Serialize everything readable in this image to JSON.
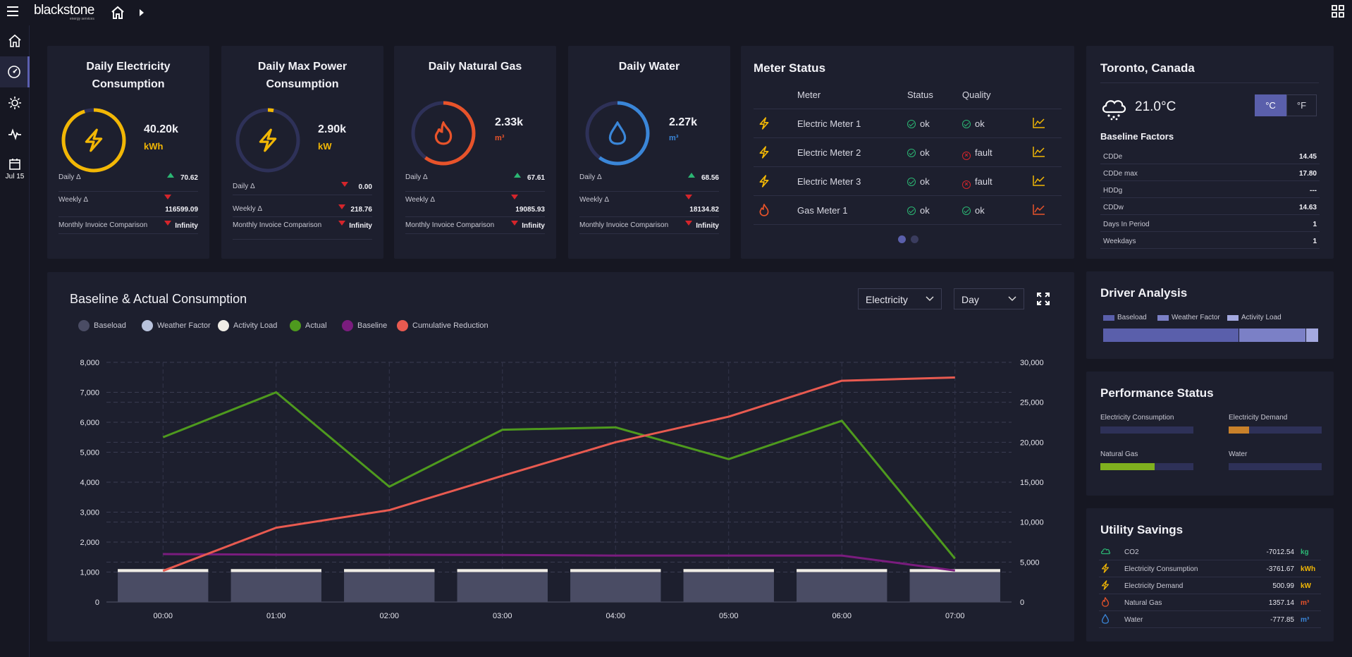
{
  "app": {
    "brand": "blackstone",
    "brand_sub": "energy services",
    "date_label": "Jul 15"
  },
  "kpi_cards": [
    {
      "title": "Daily Electricity Consumption",
      "value": "40.20k",
      "unit": "kWh",
      "color": "#f2b705",
      "ring_fraction": 0.95,
      "stats": [
        {
          "label": "Daily Δ",
          "dir": "up",
          "value": "70.62"
        },
        {
          "label": "Weekly Δ",
          "dir": "down",
          "value": "116599.09"
        },
        {
          "label": "Monthly Invoice Comparison",
          "dir": "down",
          "value": "Infinity"
        }
      ]
    },
    {
      "title": "Daily Max Power Consumption",
      "value": "2.90k",
      "unit": "kW",
      "color": "#f2b705",
      "ring_fraction": 0.03,
      "stats": [
        {
          "label": "Daily Δ",
          "dir": "down",
          "value": "0.00"
        },
        {
          "label": "Weekly Δ",
          "dir": "down",
          "value": "218.76"
        },
        {
          "label": "Monthly Invoice Comparison",
          "dir": "down",
          "value": "Infinity"
        }
      ]
    },
    {
      "title": "Daily Natural Gas",
      "value": "2.33k",
      "unit": "m³",
      "color": "#e8532a",
      "ring_fraction": 0.6,
      "stats": [
        {
          "label": "Daily Δ",
          "dir": "up",
          "value": "67.61"
        },
        {
          "label": "Weekly Δ",
          "dir": "down",
          "value": "19085.93"
        },
        {
          "label": "Monthly Invoice Comparison",
          "dir": "down",
          "value": "Infinity"
        }
      ]
    },
    {
      "title": "Daily Water",
      "value": "2.27k",
      "unit": "m³",
      "color": "#3a86d8",
      "ring_fraction": 0.6,
      "stats": [
        {
          "label": "Daily Δ",
          "dir": "up",
          "value": "68.56"
        },
        {
          "label": "Weekly Δ",
          "dir": "down",
          "value": "18134.82"
        },
        {
          "label": "Monthly Invoice Comparison",
          "dir": "down",
          "value": "Infinity"
        }
      ]
    }
  ],
  "meter_status": {
    "title": "Meter Status",
    "headers": {
      "meter": "Meter",
      "status": "Status",
      "quality": "Quality"
    },
    "rows": [
      {
        "icon": "lightning-icon",
        "meter": "Electric Meter 1",
        "status": "ok",
        "quality": "ok"
      },
      {
        "icon": "lightning-icon",
        "meter": "Electric Meter 2",
        "status": "ok",
        "quality": "fault"
      },
      {
        "icon": "lightning-icon",
        "meter": "Electric Meter 3",
        "status": "ok",
        "quality": "fault"
      },
      {
        "icon": "flame-icon",
        "meter": "Gas Meter 1",
        "status": "ok",
        "quality": "ok"
      }
    ]
  },
  "weather": {
    "location": "Toronto, Canada",
    "temp": "21.0°C",
    "unit_c": "°C",
    "unit_f": "°F",
    "baseline_title": "Baseline Factors",
    "factors": [
      {
        "label": "CDDe",
        "value": "14.45"
      },
      {
        "label": "CDDe max",
        "value": "17.80"
      },
      {
        "label": "HDDg",
        "value": "---"
      },
      {
        "label": "CDDw",
        "value": "14.63"
      },
      {
        "label": "Days In Period",
        "value": "1"
      },
      {
        "label": "Weekdays",
        "value": "1"
      }
    ]
  },
  "chart": {
    "title": "Baseline & Actual Consumption",
    "select_type": "Electricity",
    "select_period": "Day",
    "legend": [
      {
        "name": "Baseload",
        "color": "#4a4c64"
      },
      {
        "name": "Weather Factor",
        "color": "#b8c2dc"
      },
      {
        "name": "Activity Load",
        "color": "#f0ede6"
      },
      {
        "name": "Actual",
        "color": "#4e9a1e"
      },
      {
        "name": "Baseline",
        "color": "#7a1c7e"
      },
      {
        "name": "Cumulative Reduction",
        "color": "#e85a50"
      }
    ]
  },
  "chart_data": {
    "type": "bar",
    "categories": [
      "00:00",
      "01:00",
      "02:00",
      "03:00",
      "04:00",
      "05:00",
      "06:00",
      "07:00"
    ],
    "y_left": {
      "ticks": [
        "0",
        "1,000",
        "2,000",
        "3,000",
        "4,000",
        "5,000",
        "6,000",
        "7,000",
        "8,000"
      ],
      "min": 0,
      "max": 8000
    },
    "y_right": {
      "ticks": [
        "0",
        "5,000",
        "10,000",
        "15,000",
        "20,000",
        "25,000",
        "30,000"
      ],
      "min": 0,
      "max": 30000
    },
    "series": [
      {
        "name": "Baseload",
        "kind": "bar",
        "axis": "left",
        "values": [
          1000,
          1000,
          1000,
          1000,
          1000,
          1000,
          1000,
          1000
        ]
      },
      {
        "name": "Weather Factor",
        "kind": "bar",
        "axis": "left",
        "values": [
          0,
          0,
          0,
          0,
          0,
          0,
          0,
          0
        ]
      },
      {
        "name": "Activity Load",
        "kind": "bar",
        "axis": "left",
        "values": [
          100,
          100,
          100,
          100,
          100,
          100,
          100,
          100
        ]
      },
      {
        "name": "Actual",
        "kind": "line",
        "axis": "left",
        "values": [
          5500,
          7000,
          3850,
          5750,
          5830,
          4770,
          6050,
          1450
        ]
      },
      {
        "name": "Baseline",
        "kind": "line",
        "axis": "left",
        "values": [
          1600,
          1580,
          1580,
          1570,
          1550,
          1550,
          1550,
          1050
        ]
      },
      {
        "name": "Cumulative Reduction",
        "kind": "line",
        "axis": "right",
        "values": [
          3900,
          9300,
          11500,
          15800,
          20000,
          23200,
          27700,
          28100
        ]
      }
    ]
  },
  "driver_analysis": {
    "title": "Driver Analysis",
    "legend": [
      {
        "name": "Baseload",
        "color": "#5a5fab"
      },
      {
        "name": "Weather Factor",
        "color": "#7b80c6"
      },
      {
        "name": "Activity Load",
        "color": "#a4a9e0"
      }
    ],
    "shares": [
      0.63,
      0.31,
      0.06
    ]
  },
  "performance": {
    "title": "Performance Status",
    "items": [
      {
        "label": "Electricity Consumption",
        "fraction": 0,
        "color": "#5a5fab"
      },
      {
        "label": "Electricity Demand",
        "fraction": 0.22,
        "color": "#c9812a"
      },
      {
        "label": "Natural Gas",
        "fraction": 0.58,
        "color": "#7fb01e"
      },
      {
        "label": "Water",
        "fraction": 0,
        "color": "#5a5fab"
      }
    ]
  },
  "utility_savings": {
    "title": "Utility Savings",
    "rows": [
      {
        "icon": "cloud-icon",
        "label": "CO2",
        "value": "-7012.54",
        "unit": "kg",
        "color": "#2bb673"
      },
      {
        "icon": "lightning-icon",
        "label": "Electricity Consumption",
        "value": "-3761.67",
        "unit": "kWh",
        "color": "#f2b705"
      },
      {
        "icon": "lightning-icon",
        "label": "Electricity Demand",
        "value": "500.99",
        "unit": "kW",
        "color": "#f2b705"
      },
      {
        "icon": "flame-icon",
        "label": "Natural Gas",
        "value": "1357.14",
        "unit": "m³",
        "color": "#e8532a"
      },
      {
        "icon": "drop-icon",
        "label": "Water",
        "value": "-777.85",
        "unit": "m³",
        "color": "#3a86d8"
      }
    ]
  }
}
